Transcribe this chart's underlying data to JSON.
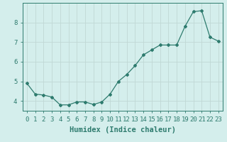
{
  "x": [
    0,
    1,
    2,
    3,
    4,
    5,
    6,
    7,
    8,
    9,
    10,
    11,
    12,
    13,
    14,
    15,
    16,
    17,
    18,
    19,
    20,
    21,
    22,
    23
  ],
  "y": [
    4.9,
    4.35,
    4.3,
    4.2,
    3.8,
    3.8,
    3.95,
    3.95,
    3.82,
    3.95,
    4.35,
    5.0,
    5.35,
    5.8,
    6.35,
    6.6,
    6.85,
    6.85,
    6.85,
    7.8,
    8.55,
    8.6,
    7.25,
    7.05
  ],
  "line_color": "#2e7b6e",
  "marker": "D",
  "marker_size": 2.0,
  "bg_color": "#d4eeec",
  "grid_color_major": "#c0d8d5",
  "grid_color_minor": "#d0e8e5",
  "axis_label_color": "#2e7b6e",
  "tick_label_color": "#2e7b6e",
  "xlabel": "Humidex (Indice chaleur)",
  "xlabel_fontsize": 7.5,
  "tick_fontsize": 6.5,
  "ylim": [
    3.5,
    9.0
  ],
  "xlim": [
    -0.5,
    23.5
  ],
  "yticks": [
    4,
    5,
    6,
    7,
    8
  ],
  "xticks": [
    0,
    1,
    2,
    3,
    4,
    5,
    6,
    7,
    8,
    9,
    10,
    11,
    12,
    13,
    14,
    15,
    16,
    17,
    18,
    19,
    20,
    21,
    22,
    23
  ],
  "figsize": [
    3.2,
    2.0
  ],
  "dpi": 100
}
